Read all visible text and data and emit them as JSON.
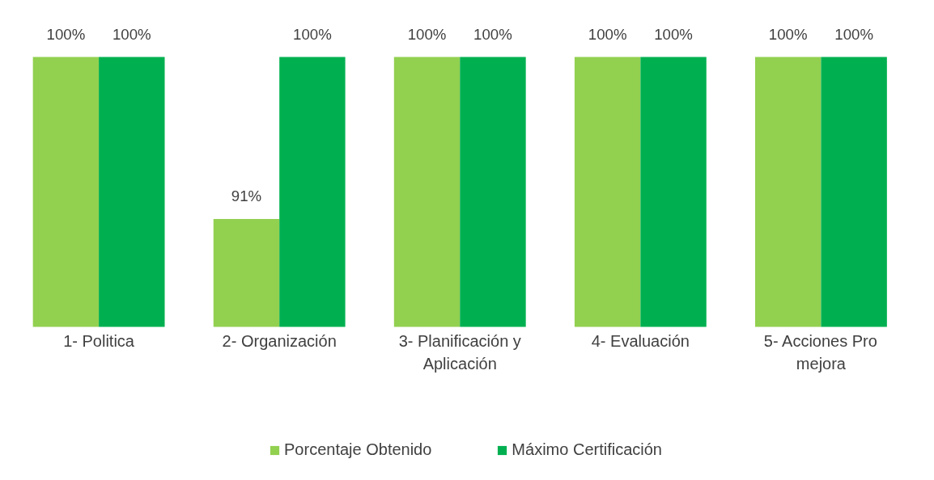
{
  "chart_data": {
    "type": "bar",
    "categories": [
      "1- Politica",
      "2- Organización",
      "3- Planificación y Aplicación",
      "4- Evaluación",
      "5- Acciones Pro mejora"
    ],
    "series": [
      {
        "name": "Porcentaje Obtenido",
        "color": "#92d050",
        "values": [
          100,
          91,
          100,
          100,
          100
        ],
        "value_labels": [
          "100%",
          "91%",
          "100%",
          "100%",
          "100%"
        ]
      },
      {
        "name": "Máximo Certificación",
        "color": "#00b050",
        "values": [
          100,
          100,
          100,
          100,
          100
        ],
        "value_labels": [
          "100%",
          "100%",
          "100%",
          "100%",
          "100%"
        ]
      }
    ],
    "ylim": [
      85,
      100
    ],
    "tick_labels": "x",
    "grid": false,
    "legend": "bottom"
  }
}
